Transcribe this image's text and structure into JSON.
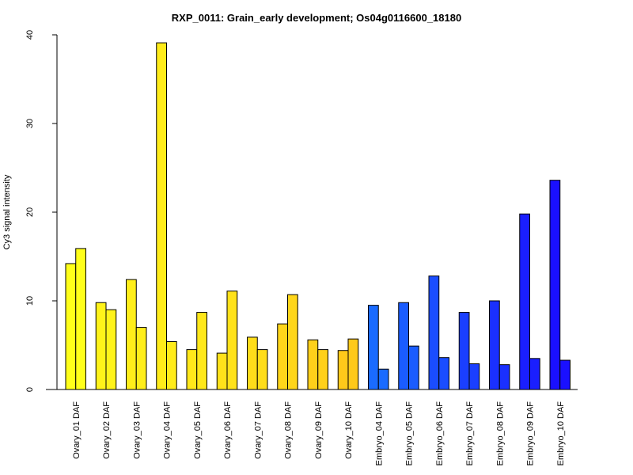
{
  "chart_data": {
    "type": "bar",
    "title": "RXP_0011: Grain_early development; Os04g0116600_18180",
    "xlabel": "",
    "ylabel": "Cy3 signal intensity",
    "ylim": [
      0,
      40
    ],
    "yticks": [
      0,
      10,
      20,
      30,
      40
    ],
    "grid": false,
    "categories": [
      "Ovary_01 DAF",
      "Ovary_02 DAF",
      "Ovary_03 DAF",
      "Ovary_04 DAF",
      "Ovary_05 DAF",
      "Ovary_06 DAF",
      "Ovary_07 DAF",
      "Ovary_08 DAF",
      "Ovary_09 DAF",
      "Ovary_10 DAF",
      "Embryo_04 DAF",
      "Embryo_05 DAF",
      "Embryo_06 DAF",
      "Embryo_07 DAF",
      "Embryo_08 DAF",
      "Embryo_09 DAF",
      "Embryo_10 DAF"
    ],
    "series": [
      {
        "values": [
          14.2,
          9.8,
          12.4,
          39.1,
          4.5,
          4.1,
          5.9,
          7.4,
          5.6,
          4.4,
          9.5,
          9.8,
          12.8,
          8.7,
          10.0,
          19.8,
          23.6
        ]
      },
      {
        "values": [
          15.9,
          9.0,
          7.0,
          5.4,
          8.7,
          11.1,
          4.5,
          10.7,
          4.5,
          5.7,
          2.3,
          4.9,
          3.6,
          2.9,
          2.8,
          3.5,
          3.3
        ]
      }
    ],
    "colors": [
      "#FFFF1A",
      "#FFF31A",
      "#FFEE1A",
      "#FFEC1A",
      "#FFE81A",
      "#FFE21A",
      "#FFDD1A",
      "#FFD61A",
      "#FFD01A",
      "#FFC91A",
      "#1A6BFF",
      "#1A5CFF",
      "#1A4DFF",
      "#1A3FFF",
      "#1A30FF",
      "#1A1FFF",
      "#1A10FF"
    ]
  }
}
